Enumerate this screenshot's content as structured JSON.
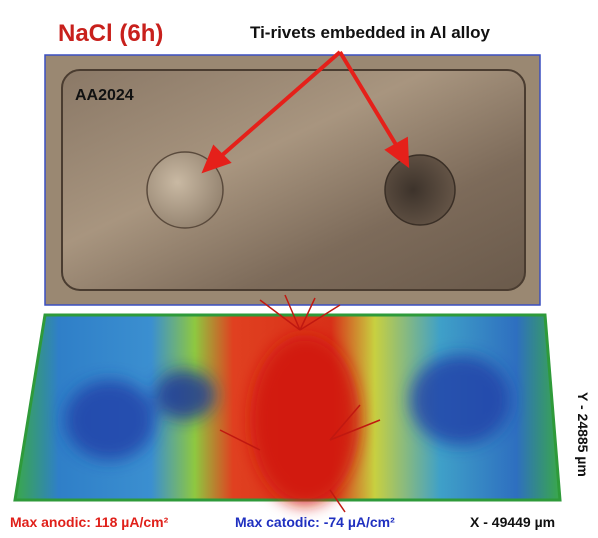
{
  "title": "NaCl (6h)",
  "annotation": "Ti-rivets embedded in Al alloy",
  "sample_label": "AA2024",
  "max_anodic": "Max anodic: 118 µA/cm²",
  "max_catodic": "Max catodic: -74 µA/cm²",
  "x_dimension": "X - 49449 µm",
  "y_dimension": "Y - 24885 µm"
}
